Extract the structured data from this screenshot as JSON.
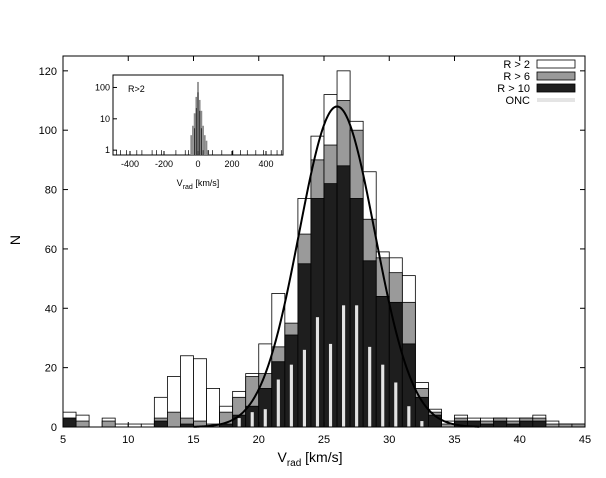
{
  "chart_data": {
    "type": "bar",
    "xlabel_main": "V",
    "xlabel_sub": "rad",
    "xlabel_unit": " [km/s]",
    "ylabel": "N",
    "xlim": [
      5,
      45
    ],
    "ylim": [
      0,
      125
    ],
    "xticks": [
      5,
      10,
      15,
      20,
      25,
      30,
      35,
      40,
      45
    ],
    "yticks": [
      0,
      20,
      40,
      60,
      80,
      100,
      120
    ],
    "bin_width": 1,
    "legend_position": "top-right",
    "series": [
      {
        "name": "R > 2",
        "color": "#ffffff",
        "bins": [
          [
            5,
            5
          ],
          [
            6,
            4
          ],
          [
            8,
            3
          ],
          [
            9,
            1
          ],
          [
            10,
            1
          ],
          [
            11,
            1
          ],
          [
            12,
            10
          ],
          [
            13,
            17
          ],
          [
            14,
            24
          ],
          [
            15,
            23
          ],
          [
            16,
            13
          ],
          [
            17,
            7
          ],
          [
            18,
            12
          ],
          [
            19,
            18
          ],
          [
            20,
            28
          ],
          [
            21,
            45
          ],
          [
            22,
            34
          ],
          [
            23,
            77
          ],
          [
            24,
            98
          ],
          [
            25,
            112
          ],
          [
            26,
            120
          ],
          [
            27,
            103
          ],
          [
            28,
            86
          ],
          [
            29,
            59
          ],
          [
            30,
            57
          ],
          [
            31,
            51
          ],
          [
            32,
            15
          ],
          [
            33,
            6
          ],
          [
            34,
            2
          ],
          [
            35,
            4
          ],
          [
            36,
            3
          ],
          [
            37,
            3
          ],
          [
            38,
            3
          ],
          [
            39,
            3
          ],
          [
            40,
            3
          ],
          [
            41,
            4
          ],
          [
            42,
            2
          ],
          [
            43,
            1
          ],
          [
            44,
            1
          ]
        ]
      },
      {
        "name": "R > 6",
        "color": "#9a9a9a",
        "bins": [
          [
            5,
            3
          ],
          [
            6,
            2
          ],
          [
            8,
            2
          ],
          [
            12,
            3
          ],
          [
            13,
            5
          ],
          [
            14,
            3
          ],
          [
            15,
            2
          ],
          [
            16,
            1
          ],
          [
            17,
            5
          ],
          [
            18,
            10
          ],
          [
            19,
            17
          ],
          [
            20,
            18
          ],
          [
            21,
            27
          ],
          [
            22,
            35
          ],
          [
            23,
            65
          ],
          [
            24,
            90
          ],
          [
            25,
            95
          ],
          [
            26,
            110
          ],
          [
            27,
            100
          ],
          [
            28,
            70
          ],
          [
            29,
            57
          ],
          [
            30,
            52
          ],
          [
            31,
            42
          ],
          [
            32,
            13
          ],
          [
            33,
            5
          ],
          [
            34,
            1
          ],
          [
            35,
            3
          ],
          [
            36,
            2
          ],
          [
            37,
            2
          ],
          [
            38,
            3
          ],
          [
            39,
            2
          ],
          [
            40,
            3
          ],
          [
            41,
            3
          ],
          [
            42,
            1
          ],
          [
            43,
            1
          ],
          [
            44,
            1
          ]
        ]
      },
      {
        "name": "R > 10",
        "color": "#1e1e1e",
        "bins": [
          [
            5,
            3
          ],
          [
            12,
            2
          ],
          [
            14,
            1
          ],
          [
            17,
            1
          ],
          [
            18,
            4
          ],
          [
            19,
            7
          ],
          [
            20,
            13
          ],
          [
            21,
            22
          ],
          [
            22,
            31
          ],
          [
            23,
            55
          ],
          [
            24,
            77
          ],
          [
            25,
            82
          ],
          [
            26,
            88
          ],
          [
            27,
            77
          ],
          [
            28,
            56
          ],
          [
            29,
            44
          ],
          [
            30,
            42
          ],
          [
            31,
            28
          ],
          [
            32,
            10
          ],
          [
            33,
            4
          ],
          [
            35,
            2
          ],
          [
            36,
            2
          ],
          [
            37,
            1
          ],
          [
            38,
            2
          ],
          [
            39,
            1
          ],
          [
            40,
            2
          ],
          [
            41,
            2
          ]
        ]
      },
      {
        "name": "ONC",
        "color": "#e4e4e4",
        "bins": [
          [
            18,
            3
          ],
          [
            19,
            5
          ],
          [
            20,
            6
          ],
          [
            21,
            16
          ],
          [
            22,
            21
          ],
          [
            23,
            26
          ],
          [
            24,
            37
          ],
          [
            25,
            28
          ],
          [
            26,
            41
          ],
          [
            27,
            41
          ],
          [
            28,
            27
          ],
          [
            29,
            21
          ],
          [
            30,
            15
          ],
          [
            31,
            7
          ],
          [
            32,
            2
          ]
        ]
      }
    ],
    "fit_curve": {
      "type": "gaussian",
      "mean": 26.0,
      "sigma": 2.9,
      "peak": 108
    },
    "inset": {
      "label": "R>2",
      "xlabel_main": "V",
      "xlabel_sub": "rad",
      "xlabel_unit": " [km/s]",
      "xlim": [
        -500,
        500
      ],
      "xticks": [
        -400,
        -200,
        0,
        200,
        400
      ],
      "yticks": [
        1,
        10,
        100
      ],
      "ylim": [
        0.7,
        250
      ],
      "yscale": "log",
      "grey_bins": [
        [
          -40,
          3
        ],
        [
          -30,
          6
        ],
        [
          -20,
          15
        ],
        [
          -10,
          50
        ],
        [
          0,
          150
        ],
        [
          10,
          40
        ],
        [
          20,
          18
        ],
        [
          30,
          6
        ],
        [
          40,
          3
        ],
        [
          50,
          2
        ],
        [
          60,
          1
        ]
      ],
      "black_bins": [
        [
          -20,
          5
        ],
        [
          -10,
          22
        ],
        [
          0,
          70
        ],
        [
          10,
          18
        ],
        [
          20,
          5
        ],
        [
          30,
          1
        ]
      ],
      "outlier_ticks": [
        -480,
        -455,
        -420,
        -360,
        -330,
        -270,
        -245,
        -215,
        -130,
        -75,
        -55,
        60,
        85,
        140,
        205,
        250,
        290,
        340,
        385,
        430,
        465,
        490
      ]
    }
  }
}
